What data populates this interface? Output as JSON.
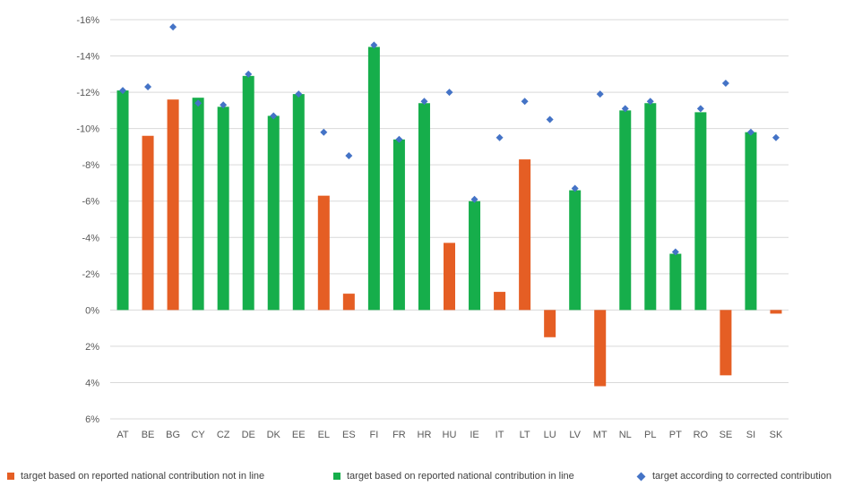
{
  "chart_data": {
    "type": "bar",
    "title": "",
    "xlabel": "",
    "ylabel": "",
    "ylim": [
      6,
      -16
    ],
    "yticks": [
      -16,
      -14,
      -12,
      -10,
      -8,
      -6,
      -4,
      -2,
      0,
      2,
      4,
      6
    ],
    "ytick_labels": [
      "-16%",
      "-14%",
      "-12%",
      "-10%",
      "-8%",
      "-6%",
      "-4%",
      "-2%",
      "0%",
      "2%",
      "4%",
      "6%"
    ],
    "y_axis_inverted": true,
    "grid": true,
    "legend_position": "bottom",
    "categories": [
      "AT",
      "BE",
      "BG",
      "CY",
      "CZ",
      "DE",
      "DK",
      "EE",
      "EL",
      "ES",
      "FI",
      "FR",
      "HR",
      "HU",
      "IE",
      "IT",
      "LT",
      "LU",
      "LV",
      "MT",
      "NL",
      "PL",
      "PT",
      "RO",
      "SE",
      "SI",
      "SK"
    ],
    "bars": [
      {
        "value": -12.1,
        "in_line": true
      },
      {
        "value": -9.6,
        "in_line": false
      },
      {
        "value": -11.6,
        "in_line": false
      },
      {
        "value": -11.7,
        "in_line": true
      },
      {
        "value": -11.2,
        "in_line": true
      },
      {
        "value": -12.9,
        "in_line": true
      },
      {
        "value": -10.7,
        "in_line": true
      },
      {
        "value": -11.9,
        "in_line": true
      },
      {
        "value": -6.3,
        "in_line": false
      },
      {
        "value": -0.9,
        "in_line": false
      },
      {
        "value": -14.5,
        "in_line": true
      },
      {
        "value": -9.4,
        "in_line": true
      },
      {
        "value": -11.4,
        "in_line": true
      },
      {
        "value": -3.7,
        "in_line": false
      },
      {
        "value": -6.0,
        "in_line": true
      },
      {
        "value": -1.0,
        "in_line": false
      },
      {
        "value": -8.3,
        "in_line": false
      },
      {
        "value": 1.5,
        "in_line": false
      },
      {
        "value": -6.6,
        "in_line": true
      },
      {
        "value": 4.2,
        "in_line": false
      },
      {
        "value": -11.0,
        "in_line": true
      },
      {
        "value": -11.4,
        "in_line": true
      },
      {
        "value": -3.1,
        "in_line": true
      },
      {
        "value": -10.9,
        "in_line": true
      },
      {
        "value": 3.6,
        "in_line": false
      },
      {
        "value": -9.8,
        "in_line": true
      },
      {
        "value": 0.2,
        "in_line": false
      }
    ],
    "corrected": [
      -12.1,
      -12.3,
      -15.6,
      -11.4,
      -11.3,
      -13.0,
      -10.7,
      -11.9,
      -9.8,
      -8.5,
      -14.6,
      -9.4,
      -11.5,
      -12.0,
      -6.1,
      -9.5,
      -11.5,
      -10.5,
      -6.7,
      -11.9,
      -11.1,
      -11.5,
      -3.2,
      -11.1,
      -12.5,
      -9.8,
      -9.5
    ],
    "series": [
      {
        "name": "target based on reported national contribution not in line",
        "color": "#E55E24"
      },
      {
        "name": "target based on reported national contribution in line",
        "color": "#16AE4B"
      },
      {
        "name": "target according to corrected contribution",
        "color": "#4473C6"
      }
    ]
  }
}
